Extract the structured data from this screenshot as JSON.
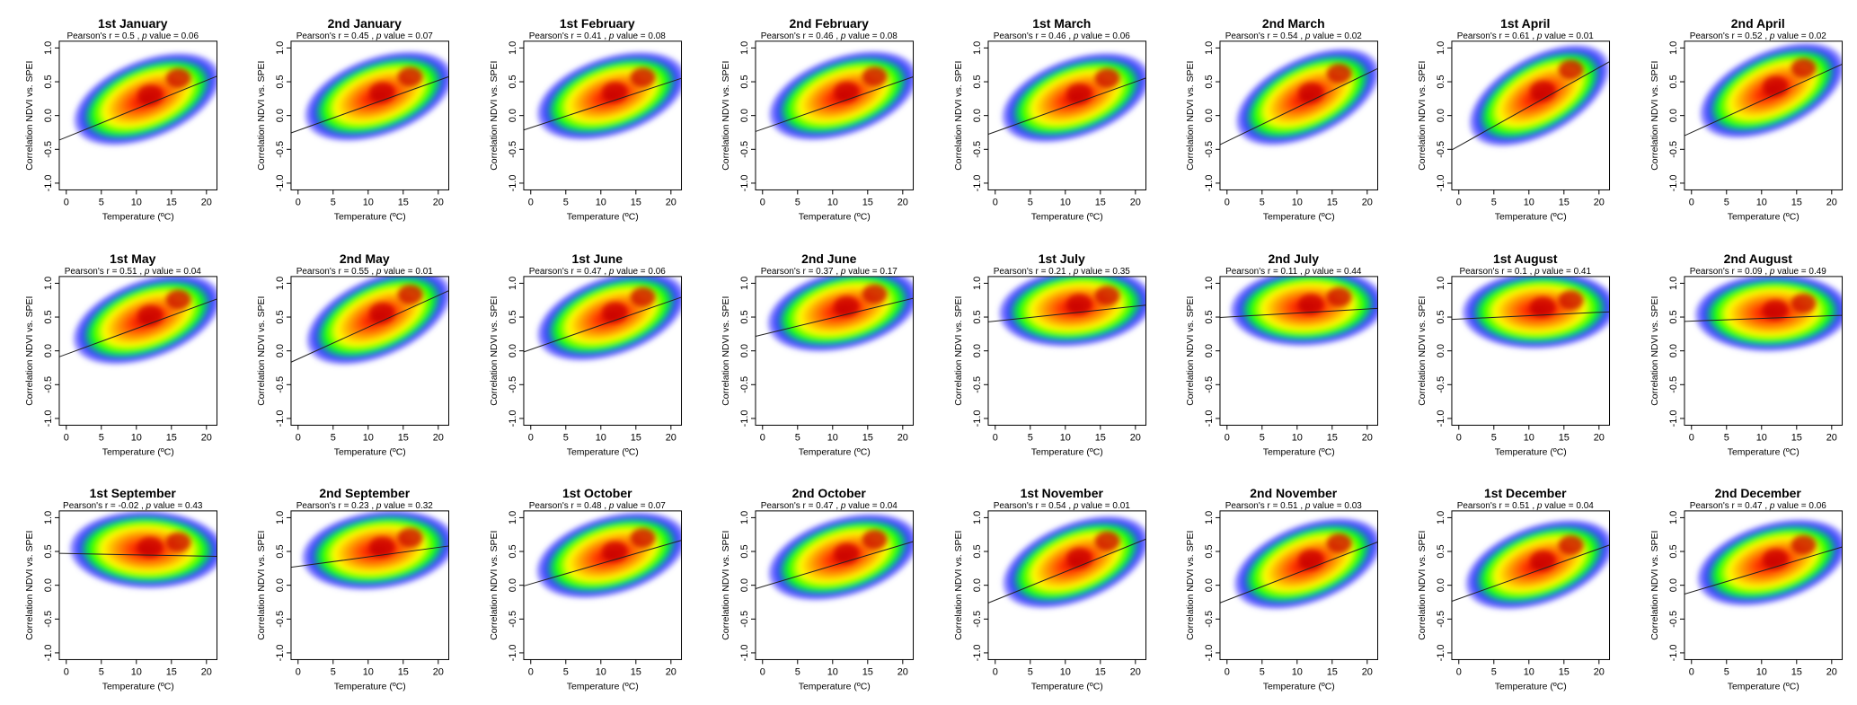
{
  "figure": {
    "xlabel": "Temperature (ºC)",
    "ylabel": "Correlation NDVI vs. SPEI",
    "stat_prefix": "Pearson's r =",
    "stat_sep": ",",
    "p_prefix": "p",
    "p_label": "value ="
  },
  "colors": {
    "ramp": [
      "#6a5cff",
      "#2f3cff",
      "#00ff00",
      "#ffff00",
      "#ff9900",
      "#ff3300",
      "#c80000"
    ],
    "line": "#222222",
    "frame": "#000000"
  },
  "chart_data": [
    {
      "type": "scatter",
      "title": "1st January",
      "r": "0.5",
      "p": "0.06",
      "intercept": -0.32,
      "slope": 0.042,
      "xlim": [
        -1,
        21.5
      ],
      "ylim": [
        -1.1,
        1.1
      ],
      "xticks": [
        "0",
        "5",
        "10",
        "15",
        "20"
      ],
      "yticks": [
        "-1.0",
        "-0.5",
        "0.0",
        "0.5",
        "1.0"
      ]
    },
    {
      "type": "scatter",
      "title": "2nd January",
      "r": "0.45",
      "p": "0.07",
      "intercept": -0.22,
      "slope": 0.037,
      "xlim": [
        -1,
        21.5
      ],
      "ylim": [
        -1.1,
        1.1
      ],
      "xticks": [
        "0",
        "5",
        "10",
        "15",
        "20"
      ],
      "yticks": [
        "-1.0",
        "-0.5",
        "0.0",
        "0.5",
        "1.0"
      ]
    },
    {
      "type": "scatter",
      "title": "1st February",
      "r": "0.41",
      "p": "0.08",
      "intercept": -0.18,
      "slope": 0.034,
      "xlim": [
        -1,
        21.5
      ],
      "ylim": [
        -1.1,
        1.1
      ],
      "xticks": [
        "0",
        "5",
        "10",
        "15",
        "20"
      ],
      "yticks": [
        "-1.0",
        "-0.5",
        "0.0",
        "0.5",
        "1.0"
      ]
    },
    {
      "type": "scatter",
      "title": "2nd February",
      "r": "0.46",
      "p": "0.08",
      "intercept": -0.2,
      "slope": 0.036,
      "xlim": [
        -1,
        21.5
      ],
      "ylim": [
        -1.1,
        1.1
      ],
      "xticks": [
        "0",
        "5",
        "10",
        "15",
        "20"
      ],
      "yticks": [
        "-1.0",
        "-0.5",
        "0.0",
        "0.5",
        "1.0"
      ]
    },
    {
      "type": "scatter",
      "title": "1st March",
      "r": "0.46",
      "p": "0.06",
      "intercept": -0.24,
      "slope": 0.037,
      "xlim": [
        -1,
        21.5
      ],
      "ylim": [
        -1.1,
        1.1
      ],
      "xticks": [
        "0",
        "5",
        "10",
        "15",
        "20"
      ],
      "yticks": [
        "-1.0",
        "-0.5",
        "0.0",
        "0.5",
        "1.0"
      ]
    },
    {
      "type": "scatter",
      "title": "2nd March",
      "r": "0.54",
      "p": "0.02",
      "intercept": -0.38,
      "slope": 0.05,
      "xlim": [
        -1,
        21.5
      ],
      "ylim": [
        -1.1,
        1.1
      ],
      "xticks": [
        "0",
        "5",
        "10",
        "15",
        "20"
      ],
      "yticks": [
        "-1.0",
        "-0.5",
        "0.0",
        "0.5",
        "1.0"
      ]
    },
    {
      "type": "scatter",
      "title": "1st April",
      "r": "0.61",
      "p": "0.01",
      "intercept": -0.45,
      "slope": 0.058,
      "xlim": [
        -1,
        21.5
      ],
      "ylim": [
        -1.1,
        1.1
      ],
      "xticks": [
        "0",
        "5",
        "10",
        "15",
        "20"
      ],
      "yticks": [
        "-1.0",
        "-0.5",
        "0.0",
        "0.5",
        "1.0"
      ]
    },
    {
      "type": "scatter",
      "title": "2nd April",
      "r": "0.52",
      "p": "0.02",
      "intercept": -0.25,
      "slope": 0.047,
      "xlim": [
        -1,
        21.5
      ],
      "ylim": [
        -1.1,
        1.1
      ],
      "xticks": [
        "0",
        "5",
        "10",
        "15",
        "20"
      ],
      "yticks": [
        "-1.0",
        "-0.5",
        "0.0",
        "0.5",
        "1.0"
      ]
    },
    {
      "type": "scatter",
      "title": "1st May",
      "r": "0.51",
      "p": "0.04",
      "intercept": -0.05,
      "slope": 0.038,
      "xlim": [
        -1,
        21.5
      ],
      "ylim": [
        -1.1,
        1.1
      ],
      "xticks": [
        "0",
        "5",
        "10",
        "15",
        "20"
      ],
      "yticks": [
        "-1.0",
        "-0.5",
        "0.0",
        "0.5",
        "1.0"
      ]
    },
    {
      "type": "scatter",
      "title": "2nd May",
      "r": "0.55",
      "p": "0.01",
      "intercept": -0.12,
      "slope": 0.047,
      "xlim": [
        -1,
        21.5
      ],
      "ylim": [
        -1.1,
        1.1
      ],
      "xticks": [
        "0",
        "5",
        "10",
        "15",
        "20"
      ],
      "yticks": [
        "-1.0",
        "-0.5",
        "0.0",
        "0.5",
        "1.0"
      ]
    },
    {
      "type": "scatter",
      "title": "1st June",
      "r": "0.47",
      "p": "0.06",
      "intercept": 0.02,
      "slope": 0.036,
      "xlim": [
        -1,
        21.5
      ],
      "ylim": [
        -1.1,
        1.1
      ],
      "xticks": [
        "0",
        "5",
        "10",
        "15",
        "20"
      ],
      "yticks": [
        "-1.0",
        "-0.5",
        "0.0",
        "0.5",
        "1.0"
      ]
    },
    {
      "type": "scatter",
      "title": "2nd June",
      "r": "0.37",
      "p": "0.17",
      "intercept": 0.24,
      "slope": 0.025,
      "xlim": [
        -1,
        21.5
      ],
      "ylim": [
        -1.1,
        1.1
      ],
      "xticks": [
        "0",
        "5",
        "10",
        "15",
        "20"
      ],
      "yticks": [
        "-1.0",
        "-0.5",
        "0.0",
        "0.5",
        "1.0"
      ]
    },
    {
      "type": "scatter",
      "title": "1st July",
      "r": "0.21",
      "p": "0.35",
      "intercept": 0.44,
      "slope": 0.011,
      "xlim": [
        -1,
        21.5
      ],
      "ylim": [
        -1.1,
        1.1
      ],
      "xticks": [
        "0",
        "5",
        "10",
        "15",
        "20"
      ],
      "yticks": [
        "-1.0",
        "-0.5",
        "0.0",
        "0.5",
        "1.0"
      ]
    },
    {
      "type": "scatter",
      "title": "2nd July",
      "r": "0.11",
      "p": "0.44",
      "intercept": 0.5,
      "slope": 0.006,
      "xlim": [
        -1,
        21.5
      ],
      "ylim": [
        -1.1,
        1.1
      ],
      "xticks": [
        "0",
        "5",
        "10",
        "15",
        "20"
      ],
      "yticks": [
        "-1.0",
        "-0.5",
        "0.0",
        "0.5",
        "1.0"
      ]
    },
    {
      "type": "scatter",
      "title": "1st August",
      "r": "0.1",
      "p": "0.41",
      "intercept": 0.47,
      "slope": 0.005,
      "xlim": [
        -1,
        21.5
      ],
      "ylim": [
        -1.1,
        1.1
      ],
      "xticks": [
        "0",
        "5",
        "10",
        "15",
        "20"
      ],
      "yticks": [
        "-1.0",
        "-0.5",
        "0.0",
        "0.5",
        "1.0"
      ]
    },
    {
      "type": "scatter",
      "title": "2nd August",
      "r": "0.09",
      "p": "0.49",
      "intercept": 0.44,
      "slope": 0.004,
      "xlim": [
        -1,
        21.5
      ],
      "ylim": [
        -1.1,
        1.1
      ],
      "xticks": [
        "0",
        "5",
        "10",
        "15",
        "20"
      ],
      "yticks": [
        "-1.0",
        "-0.5",
        "0.0",
        "0.5",
        "1.0"
      ]
    },
    {
      "type": "scatter",
      "title": "1st September",
      "r": "-0.02",
      "p": "0.43",
      "intercept": 0.47,
      "slope": -0.002,
      "xlim": [
        -1,
        21.5
      ],
      "ylim": [
        -1.1,
        1.1
      ],
      "xticks": [
        "0",
        "5",
        "10",
        "15",
        "20"
      ],
      "yticks": [
        "-1.0",
        "-0.5",
        "0.0",
        "0.5",
        "1.0"
      ]
    },
    {
      "type": "scatter",
      "title": "2nd September",
      "r": "0.23",
      "p": "0.32",
      "intercept": 0.28,
      "slope": 0.014,
      "xlim": [
        -1,
        21.5
      ],
      "ylim": [
        -1.1,
        1.1
      ],
      "xticks": [
        "0",
        "5",
        "10",
        "15",
        "20"
      ],
      "yticks": [
        "-1.0",
        "-0.5",
        "0.0",
        "0.5",
        "1.0"
      ]
    },
    {
      "type": "scatter",
      "title": "1st October",
      "r": "0.48",
      "p": "0.07",
      "intercept": 0.02,
      "slope": 0.03,
      "xlim": [
        -1,
        21.5
      ],
      "ylim": [
        -1.1,
        1.1
      ],
      "xticks": [
        "0",
        "5",
        "10",
        "15",
        "20"
      ],
      "yticks": [
        "-1.0",
        "-0.5",
        "0.0",
        "0.5",
        "1.0"
      ]
    },
    {
      "type": "scatter",
      "title": "2nd October",
      "r": "0.47",
      "p": "0.04",
      "intercept": -0.02,
      "slope": 0.031,
      "xlim": [
        -1,
        21.5
      ],
      "ylim": [
        -1.1,
        1.1
      ],
      "xticks": [
        "0",
        "5",
        "10",
        "15",
        "20"
      ],
      "yticks": [
        "-1.0",
        "-0.5",
        "0.0",
        "0.5",
        "1.0"
      ]
    },
    {
      "type": "scatter",
      "title": "1st November",
      "r": "0.54",
      "p": "0.01",
      "intercept": -0.22,
      "slope": 0.042,
      "xlim": [
        -1,
        21.5
      ],
      "ylim": [
        -1.1,
        1.1
      ],
      "xticks": [
        "0",
        "5",
        "10",
        "15",
        "20"
      ],
      "yticks": [
        "-1.0",
        "-0.5",
        "0.0",
        "0.5",
        "1.0"
      ]
    },
    {
      "type": "scatter",
      "title": "2nd November",
      "r": "0.51",
      "p": "0.03",
      "intercept": -0.22,
      "slope": 0.04,
      "xlim": [
        -1,
        21.5
      ],
      "ylim": [
        -1.1,
        1.1
      ],
      "xticks": [
        "0",
        "5",
        "10",
        "15",
        "20"
      ],
      "yticks": [
        "-1.0",
        "-0.5",
        "0.0",
        "0.5",
        "1.0"
      ]
    },
    {
      "type": "scatter",
      "title": "1st December",
      "r": "0.51",
      "p": "0.04",
      "intercept": -0.2,
      "slope": 0.037,
      "xlim": [
        -1,
        21.5
      ],
      "ylim": [
        -1.1,
        1.1
      ],
      "xticks": [
        "0",
        "5",
        "10",
        "15",
        "20"
      ],
      "yticks": [
        "-1.0",
        "-0.5",
        "0.0",
        "0.5",
        "1.0"
      ]
    },
    {
      "type": "scatter",
      "title": "2nd December",
      "r": "0.47",
      "p": "0.06",
      "intercept": -0.1,
      "slope": 0.031,
      "xlim": [
        -1,
        21.5
      ],
      "ylim": [
        -1.1,
        1.1
      ],
      "xticks": [
        "0",
        "5",
        "10",
        "15",
        "20"
      ],
      "yticks": [
        "-1.0",
        "-0.5",
        "0.0",
        "0.5",
        "1.0"
      ]
    }
  ]
}
